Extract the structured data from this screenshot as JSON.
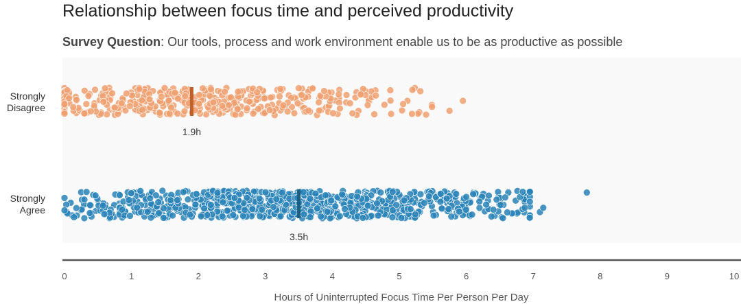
{
  "title": "Relationship between focus time and perceived productivity",
  "subtitle": {
    "prefix": "Survey Question",
    "separator": ": ",
    "text": "Our tools, process and work environment enable us to be as productive as possible"
  },
  "chart_data": {
    "type": "scatter",
    "style": "strip plot (jittered points per category)",
    "xlabel": "Hours of Uninterrupted Focus Time Per Person Per Day",
    "xlim": [
      0,
      10
    ],
    "xticks": [
      "0",
      "1",
      "2",
      "3",
      "4",
      "5",
      "6",
      "7",
      "8",
      "9",
      "10"
    ],
    "grid": false,
    "background": "#f9f9f9",
    "categories": [
      {
        "name": "Strongly Disagree",
        "label_lines": [
          "Strongly",
          "Disagree"
        ],
        "color": "#f0a070",
        "median_color": "#c0612b",
        "median": 1.9,
        "median_label": "1.9h",
        "point_count": 420,
        "x_range": [
          0,
          5.5
        ],
        "outliers": [
          5.75,
          5.95
        ]
      },
      {
        "name": "Strongly Agree",
        "label_lines": [
          "Strongly",
          "Agree"
        ],
        "color": "#2a84b8",
        "median_color": "#1c5e80",
        "median": 3.5,
        "median_label": "3.5h",
        "point_count": 820,
        "x_range": [
          0,
          6.95
        ],
        "outliers": [
          7.1,
          7.15,
          7.8
        ]
      }
    ]
  }
}
